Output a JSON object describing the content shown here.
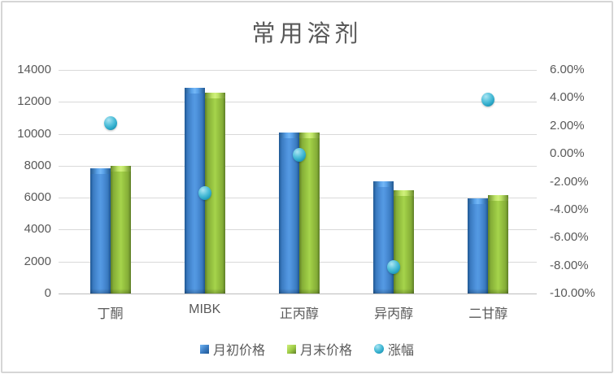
{
  "chart": {
    "title": "常用溶剂",
    "legend": [
      {
        "key": "begin",
        "label": "月初价格",
        "swatch": "square-blue"
      },
      {
        "key": "end",
        "label": "月末价格",
        "swatch": "square-green"
      },
      {
        "key": "change",
        "label": "涨幅",
        "swatch": "circle-teal"
      }
    ]
  },
  "chart_data": {
    "type": "bar",
    "subtype": "dual-axis combo: grouped 3D bars + scatter markers on secondary percent axis",
    "title": "常用溶剂",
    "categories": [
      "丁酮",
      "MIBK",
      "正丙醇",
      "异丙醇",
      "二甘醇"
    ],
    "series": [
      {
        "name": "月初价格",
        "type": "bar",
        "axis": "left",
        "color": "#4a8cd3",
        "values": [
          7850,
          12900,
          10100,
          7050,
          5980
        ]
      },
      {
        "name": "月末价格",
        "type": "bar",
        "axis": "left",
        "color": "#9cc944",
        "values": [
          8000,
          12550,
          10100,
          6450,
          6150
        ]
      },
      {
        "name": "涨幅",
        "type": "scatter",
        "axis": "right",
        "color": "#3bb5d3",
        "unit": "%",
        "values": [
          2.2,
          -2.8,
          -0.1,
          -8.1,
          3.9
        ]
      }
    ],
    "left_axis": {
      "min": 0,
      "max": 14000,
      "step": 2000,
      "tick_labels": [
        "14000",
        "12000",
        "10000",
        "8000",
        "6000",
        "4000",
        "2000",
        "0"
      ]
    },
    "right_axis": {
      "min": -10,
      "max": 6,
      "step": 2,
      "tick_labels": [
        "6.00%",
        "4.00%",
        "2.00%",
        "0.00%",
        "-2.00%",
        "-4.00%",
        "-6.00%",
        "-8.00%",
        "-10.00%"
      ]
    },
    "grid": "horizontal",
    "legend_position": "bottom",
    "colors": {
      "text": "#595959",
      "gridline": "#d9d9d9",
      "axis_line": "#bdbdbd",
      "frame_border": "#d6d6d6"
    }
  }
}
